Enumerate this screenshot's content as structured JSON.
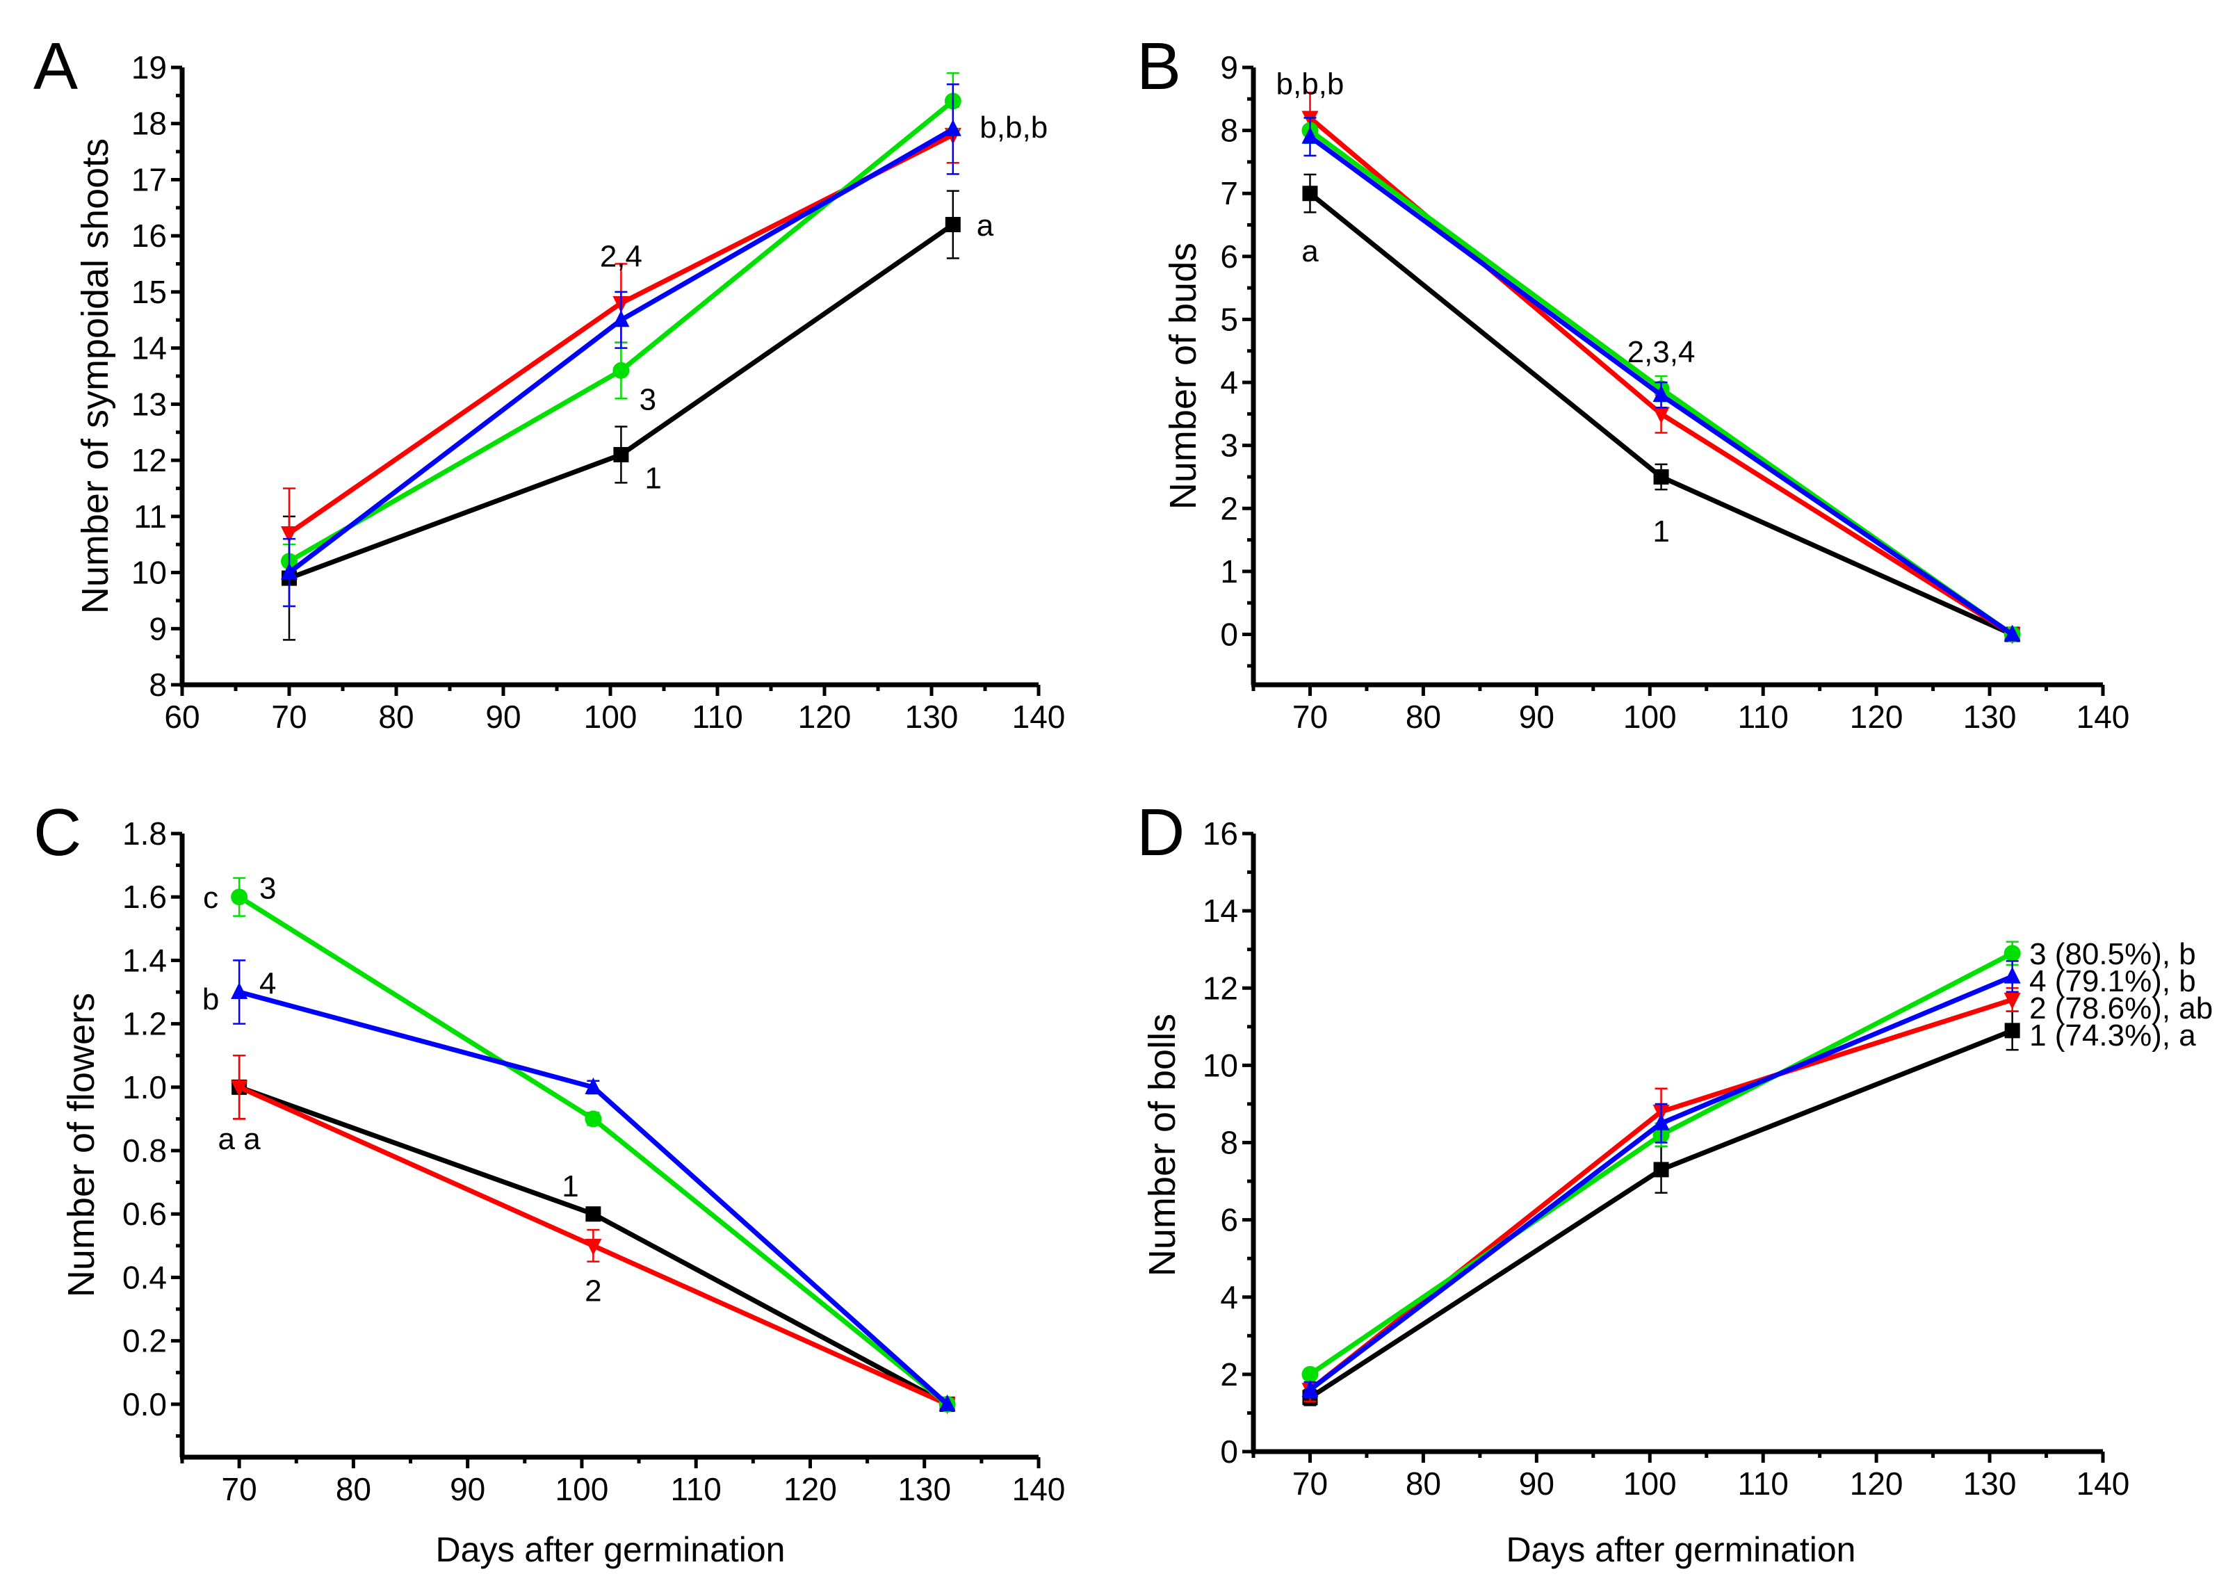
{
  "series_styles": [
    {
      "name": "1",
      "color": "#000000",
      "marker": "square"
    },
    {
      "name": "2",
      "color": "#ff0000",
      "marker": "triangle-down"
    },
    {
      "name": "3",
      "color": "#00e000",
      "marker": "circle"
    },
    {
      "name": "4",
      "color": "#0000ff",
      "marker": "triangle-up"
    }
  ],
  "chart_data": [
    {
      "panel": "A",
      "type": "line",
      "xlabel": "",
      "ylabel": "Number of sympoidal shoots",
      "xlim": [
        60,
        140
      ],
      "ylim": [
        8,
        19
      ],
      "xticks": [
        60,
        70,
        80,
        90,
        100,
        110,
        120,
        130,
        140
      ],
      "yticks": [
        8,
        9,
        10,
        11,
        12,
        13,
        14,
        15,
        16,
        17,
        18,
        19
      ],
      "x": [
        70,
        101,
        132
      ],
      "series": [
        {
          "name": "1",
          "values": [
            9.9,
            12.1,
            16.2
          ],
          "errors": [
            1.1,
            0.5,
            0.6
          ]
        },
        {
          "name": "2",
          "values": [
            10.7,
            14.8,
            17.8
          ],
          "errors": [
            0.8,
            0.7,
            0.5
          ]
        },
        {
          "name": "3",
          "values": [
            10.2,
            13.6,
            18.4
          ],
          "errors": [
            0.3,
            0.5,
            0.5
          ]
        },
        {
          "name": "4",
          "values": [
            10.0,
            14.5,
            17.9
          ],
          "errors": [
            0.6,
            0.5,
            0.8
          ]
        }
      ],
      "annotations": [
        {
          "text": "2,4",
          "x": 101,
          "y": 15.65,
          "anchor": "middle"
        },
        {
          "text": "3",
          "x": 103.5,
          "y": 13.1,
          "anchor": "middle"
        },
        {
          "text": "1",
          "x": 104,
          "y": 11.7,
          "anchor": "middle"
        },
        {
          "text": "a",
          "x": 135,
          "y": 16.2,
          "anchor": "middle"
        },
        {
          "text": "b,b,b",
          "x": 134.5,
          "y": 17.95,
          "anchor": "start"
        }
      ]
    },
    {
      "panel": "B",
      "type": "line",
      "xlabel": "",
      "ylabel": "Number of buds",
      "xlim": [
        65,
        140
      ],
      "ylim": [
        -0.8,
        9
      ],
      "xticks": [
        70,
        80,
        90,
        100,
        110,
        120,
        130,
        140
      ],
      "yticks": [
        0,
        1,
        2,
        3,
        4,
        5,
        6,
        7,
        8,
        9
      ],
      "x": [
        70,
        101,
        132
      ],
      "series": [
        {
          "name": "1",
          "values": [
            7.0,
            2.5,
            0
          ],
          "errors": [
            0.3,
            0.2,
            0
          ]
        },
        {
          "name": "2",
          "values": [
            8.2,
            3.5,
            0
          ],
          "errors": [
            0.4,
            0.3,
            0
          ]
        },
        {
          "name": "3",
          "values": [
            8.0,
            3.9,
            0
          ],
          "errors": [
            0.2,
            0.2,
            0
          ]
        },
        {
          "name": "4",
          "values": [
            7.9,
            3.8,
            0
          ],
          "errors": [
            0.3,
            0.2,
            0
          ]
        }
      ],
      "annotations": [
        {
          "text": "b,b,b",
          "x": 70,
          "y": 8.75,
          "anchor": "middle"
        },
        {
          "text": "a",
          "x": 70,
          "y": 6.1,
          "anchor": "middle"
        },
        {
          "text": "2,3,4",
          "x": 101,
          "y": 4.5,
          "anchor": "middle"
        },
        {
          "text": "1",
          "x": 101,
          "y": 1.65,
          "anchor": "middle"
        }
      ]
    },
    {
      "panel": "C",
      "type": "line",
      "xlabel": "Days after germination",
      "ylabel": "Number of flowers",
      "xlim": [
        65,
        140
      ],
      "ylim": [
        -0.167,
        1.8
      ],
      "xticks": [
        70,
        80,
        90,
        100,
        110,
        120,
        130,
        140
      ],
      "yticks": [
        0.0,
        0.2,
        0.4,
        0.6,
        0.8,
        1.0,
        1.2,
        1.4,
        1.6,
        1.8
      ],
      "x": [
        70,
        101,
        132
      ],
      "series": [
        {
          "name": "1",
          "values": [
            1.0,
            0.6,
            0
          ],
          "errors": [
            0.1,
            0,
            0
          ]
        },
        {
          "name": "2",
          "values": [
            1.0,
            0.5,
            0
          ],
          "errors": [
            0.1,
            0.05,
            0
          ]
        },
        {
          "name": "3",
          "values": [
            1.6,
            0.9,
            0
          ],
          "errors": [
            0.06,
            0.02,
            0
          ]
        },
        {
          "name": "4",
          "values": [
            1.3,
            1.0,
            0
          ],
          "errors": [
            0.1,
            0.02,
            0
          ]
        }
      ],
      "annotations": [
        {
          "text": "c",
          "x": 67.5,
          "y": 1.6,
          "anchor": "middle"
        },
        {
          "text": "3",
          "x": 72.5,
          "y": 1.63,
          "anchor": "middle"
        },
        {
          "text": "b",
          "x": 67.5,
          "y": 1.28,
          "anchor": "middle"
        },
        {
          "text": "4",
          "x": 72.5,
          "y": 1.33,
          "anchor": "middle"
        },
        {
          "text": "a a",
          "x": 70,
          "y": 0.84,
          "anchor": "middle"
        },
        {
          "text": "1",
          "x": 99,
          "y": 0.69,
          "anchor": "middle"
        },
        {
          "text": "2",
          "x": 101,
          "y": 0.36,
          "anchor": "middle"
        }
      ]
    },
    {
      "panel": "D",
      "type": "line",
      "xlabel": "Days after germination",
      "ylabel": "Number of bolls",
      "xlim": [
        65,
        140
      ],
      "ylim": [
        0,
        16
      ],
      "xticks": [
        70,
        80,
        90,
        100,
        110,
        120,
        130,
        140
      ],
      "yticks": [
        0,
        2,
        4,
        6,
        8,
        10,
        12,
        14,
        16
      ],
      "x": [
        70,
        101,
        132
      ],
      "series": [
        {
          "name": "1",
          "values": [
            1.4,
            7.3,
            10.9
          ],
          "errors": [
            0.2,
            0.6,
            0.5
          ]
        },
        {
          "name": "2",
          "values": [
            1.6,
            8.8,
            11.7
          ],
          "errors": [
            0.3,
            0.6,
            0.3
          ]
        },
        {
          "name": "3",
          "values": [
            2.0,
            8.2,
            12.9
          ],
          "errors": [
            0.1,
            0.3,
            0.3
          ]
        },
        {
          "name": "4",
          "values": [
            1.6,
            8.5,
            12.3
          ],
          "errors": [
            0.2,
            0.5,
            0.4
          ]
        }
      ],
      "annotations": [
        {
          "text": "3 (80.5%), b",
          "x": 133.5,
          "y": 12.9,
          "anchor": "start"
        },
        {
          "text": "4 (79.1%), b",
          "x": 133.5,
          "y": 12.2,
          "anchor": "start"
        },
        {
          "text": "2 (78.6%), ab",
          "x": 133.5,
          "y": 11.5,
          "anchor": "start"
        },
        {
          "text": "1 (74.3%), a",
          "x": 133.5,
          "y": 10.8,
          "anchor": "start"
        }
      ]
    }
  ]
}
